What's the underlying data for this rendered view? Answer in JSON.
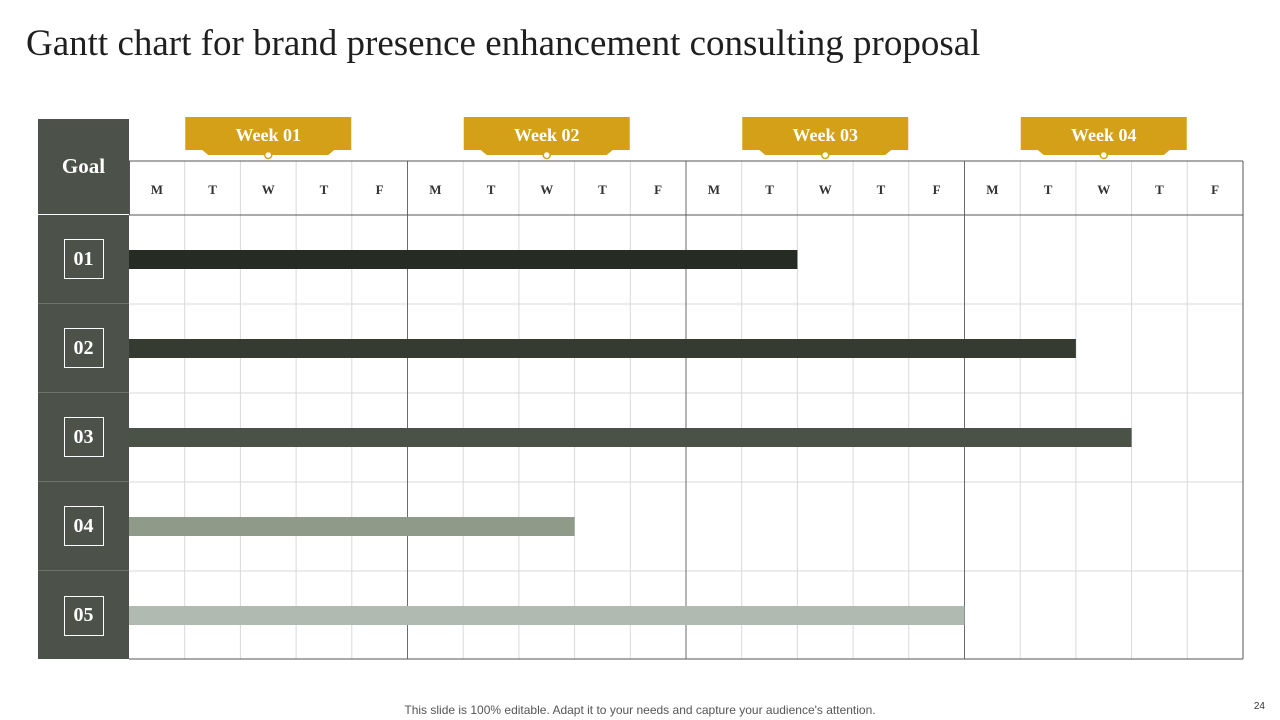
{
  "title": "Gantt chart for brand presence enhancement consulting proposal",
  "footer": "This slide is 100% editable. Adapt it to your needs and capture your audience's attention.",
  "page_number": "24",
  "colors": {
    "accent": "#d4a017",
    "goal_column": "#4c5249",
    "grid_line": "#d9d9d9",
    "week_line": "#6b6b6b"
  },
  "chart_data": {
    "type": "gantt",
    "goal_header": "Goal",
    "weeks": [
      "Week 01",
      "Week 02",
      "Week 03",
      "Week 04"
    ],
    "days": [
      "M",
      "T",
      "W",
      "T",
      "F"
    ],
    "unit": "working days",
    "tasks": [
      {
        "label": "01",
        "start": 0,
        "duration": 12,
        "color": "#262b24"
      },
      {
        "label": "02",
        "start": 0,
        "duration": 17,
        "color": "#363b32"
      },
      {
        "label": "03",
        "start": 0,
        "duration": 18,
        "color": "#4a5247"
      },
      {
        "label": "04",
        "start": 0,
        "duration": 8,
        "color": "#8f9a88"
      },
      {
        "label": "05",
        "start": 0,
        "duration": 15,
        "color": "#b1bab0"
      }
    ]
  }
}
